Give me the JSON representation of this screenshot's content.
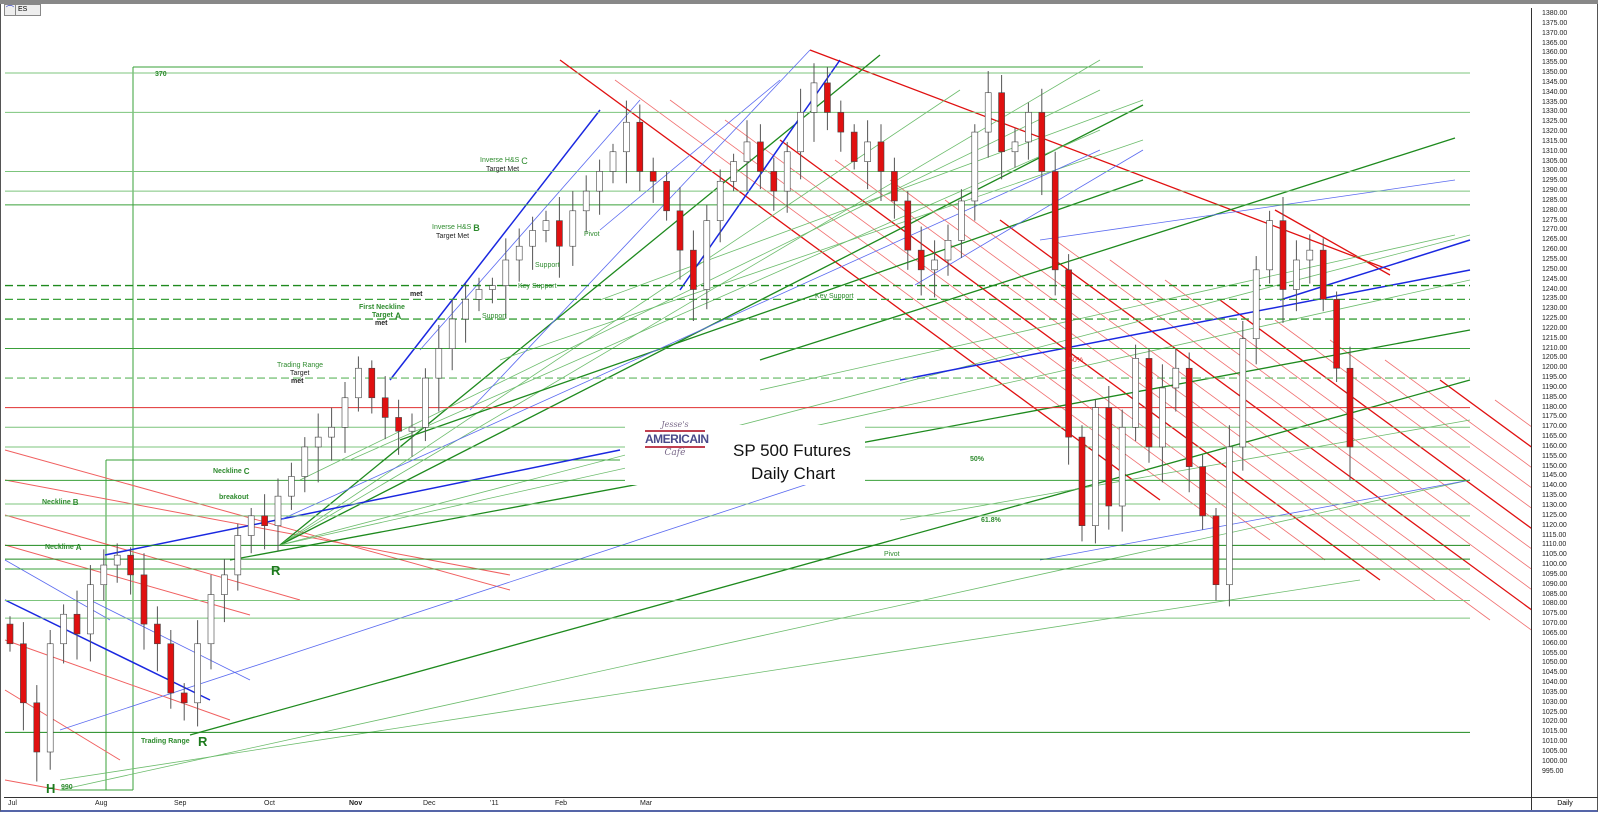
{
  "symbol": "ES",
  "interval_label": "Daily",
  "chart_data": {
    "type": "candlestick",
    "title": "SP 500 Futures",
    "subtitle": "Daily Chart",
    "logo_text": "Jesse's Americain Cafe",
    "x_tick_labels": [
      "Jul",
      "Aug",
      "Sep",
      "Oct",
      "Nov",
      "Dec",
      "'11",
      "Feb",
      "Mar"
    ],
    "y_tick_labels": [
      "1380.00",
      "1375.00",
      "1370.00",
      "1365.00",
      "1360.00",
      "1355.00",
      "1350.00",
      "1345.00",
      "1340.00",
      "1335.00",
      "1330.00",
      "1325.00",
      "1320.00",
      "1315.00",
      "1310.00",
      "1305.00",
      "1300.00",
      "1295.00",
      "1290.00",
      "1285.00",
      "1280.00",
      "1275.00",
      "1270.00",
      "1265.00",
      "1260.00",
      "1255.00",
      "1250.00",
      "1245.00",
      "1240.00",
      "1235.00",
      "1230.00",
      "1225.00",
      "1220.00",
      "1215.00",
      "1210.00",
      "1205.00",
      "1200.00",
      "1195.00",
      "1190.00",
      "1185.00",
      "1180.00",
      "1175.00",
      "1170.00",
      "1165.00",
      "1160.00",
      "1155.00",
      "1150.00",
      "1145.00",
      "1140.00",
      "1135.00",
      "1130.00",
      "1125.00",
      "1120.00",
      "1115.00",
      "1110.00",
      "1105.00",
      "1100.00",
      "1095.00",
      "1090.00",
      "1085.00",
      "1080.00",
      "1075.00",
      "1070.00",
      "1065.00",
      "1060.00",
      "1055.00",
      "1050.00",
      "1045.00",
      "1040.00",
      "1035.00",
      "1030.00",
      "1025.00",
      "1020.00",
      "1015.00",
      "1010.00",
      "1005.00",
      "1000.00",
      "995.00"
    ],
    "ylim": [
      990,
      1382
    ],
    "closes": [
      1060,
      1030,
      1005,
      1060,
      1075,
      1065,
      1090,
      1100,
      1105,
      1095,
      1070,
      1060,
      1035,
      1030,
      1060,
      1085,
      1095,
      1115,
      1125,
      1120,
      1135,
      1145,
      1160,
      1165,
      1170,
      1185,
      1200,
      1185,
      1175,
      1168,
      1170,
      1195,
      1210,
      1225,
      1235,
      1240,
      1242,
      1255,
      1262,
      1270,
      1275,
      1262,
      1280,
      1290,
      1300,
      1310,
      1325,
      1300,
      1295,
      1280,
      1260,
      1240,
      1275,
      1295,
      1305,
      1315,
      1300,
      1290,
      1310,
      1330,
      1345,
      1330,
      1320,
      1305,
      1315,
      1300,
      1285,
      1260,
      1250,
      1255,
      1265,
      1285,
      1320,
      1340,
      1310,
      1315,
      1330,
      1300,
      1250,
      1165,
      1120,
      1180,
      1130,
      1170,
      1205,
      1160,
      1190,
      1200,
      1150,
      1125,
      1090,
      1160,
      1215,
      1250,
      1275,
      1240,
      1255,
      1260,
      1235,
      1200,
      1160
    ],
    "levels": [
      {
        "price": 1242,
        "color": "#1e8a1e",
        "style": "dash"
      },
      {
        "price": 1235,
        "color": "#3aa03a",
        "style": "dash"
      },
      {
        "price": 1225,
        "color": "#3aa03a",
        "style": "dash"
      },
      {
        "price": 1210,
        "color": "#3aa03a",
        "style": "solid"
      },
      {
        "price": 1195,
        "color": "#7cc47c",
        "style": "dash"
      },
      {
        "price": 1180,
        "color": "#e03030",
        "style": "solid"
      },
      {
        "price": 1170,
        "color": "#7cc47c",
        "style": "solid"
      },
      {
        "price": 1160,
        "color": "#7cc47c",
        "style": "solid"
      },
      {
        "price": 1143,
        "color": "#3aa03a",
        "style": "solid"
      },
      {
        "price": 1131,
        "color": "#7cc47c",
        "style": "solid"
      },
      {
        "price": 1125,
        "color": "#7cc47c",
        "style": "solid"
      },
      {
        "price": 1110,
        "color": "#1e8a1e",
        "style": "solid"
      },
      {
        "price": 1103,
        "color": "#1e8a1e",
        "style": "solid"
      },
      {
        "price": 1098,
        "color": "#3aa03a",
        "style": "solid"
      },
      {
        "price": 1082,
        "color": "#7cc47c",
        "style": "solid"
      },
      {
        "price": 1073,
        "color": "#7cc47c",
        "style": "solid"
      },
      {
        "price": 1015,
        "color": "#1e8a1e",
        "style": "solid"
      },
      {
        "price": 1300,
        "color": "#7cc47c",
        "style": "solid"
      },
      {
        "price": 1290,
        "color": "#7cc47c",
        "style": "solid"
      },
      {
        "price": 1283,
        "color": "#3aa03a",
        "style": "solid"
      },
      {
        "price": 1330,
        "color": "#7cc47c",
        "style": "solid"
      },
      {
        "price": 1350,
        "color": "#7cc47c",
        "style": "solid"
      }
    ],
    "annotations": {
      "a370": "370",
      "ihs_c": "Inverse H&S",
      "ihs_c_letter": "C",
      "ihs_c_met": "Target Met",
      "ihs_b": "Inverse H&S",
      "ihs_b_letter": "B",
      "ihs_b_met": "Target Met",
      "pivot_top": "Pivot",
      "support_1": "Support",
      "key_support_1": "Key Support",
      "met_1": "met",
      "first_neckline": "First Neckline",
      "target_a": "Target",
      "target_a_letter": "A",
      "met_2": "met",
      "support_2": "Support",
      "trading_range_target": "Trading Range",
      "target_tr": "Target",
      "met_3": "met",
      "key_support_2": "Key Support",
      "fifty_red": "50%",
      "fifty": "50%",
      "fib618": "61.8%",
      "pivot_mid": "Pivot",
      "neckline_c": "Neckline",
      "neckline_c_letter": "C",
      "breakout": "breakout",
      "neckline_b": "Neckline",
      "neckline_b_letter": "B",
      "neckline_a": "Neckline",
      "neckline_a_letter": "A",
      "r_upper": "R",
      "trading_range": "Trading Range",
      "r_lower": "R",
      "h": "H",
      "a990": "990"
    },
    "colors": {
      "down": "#e01010",
      "up": "#ffffff",
      "support": "#2e8b2e",
      "resistance": "#e03030",
      "channel": "#2030e0"
    }
  }
}
